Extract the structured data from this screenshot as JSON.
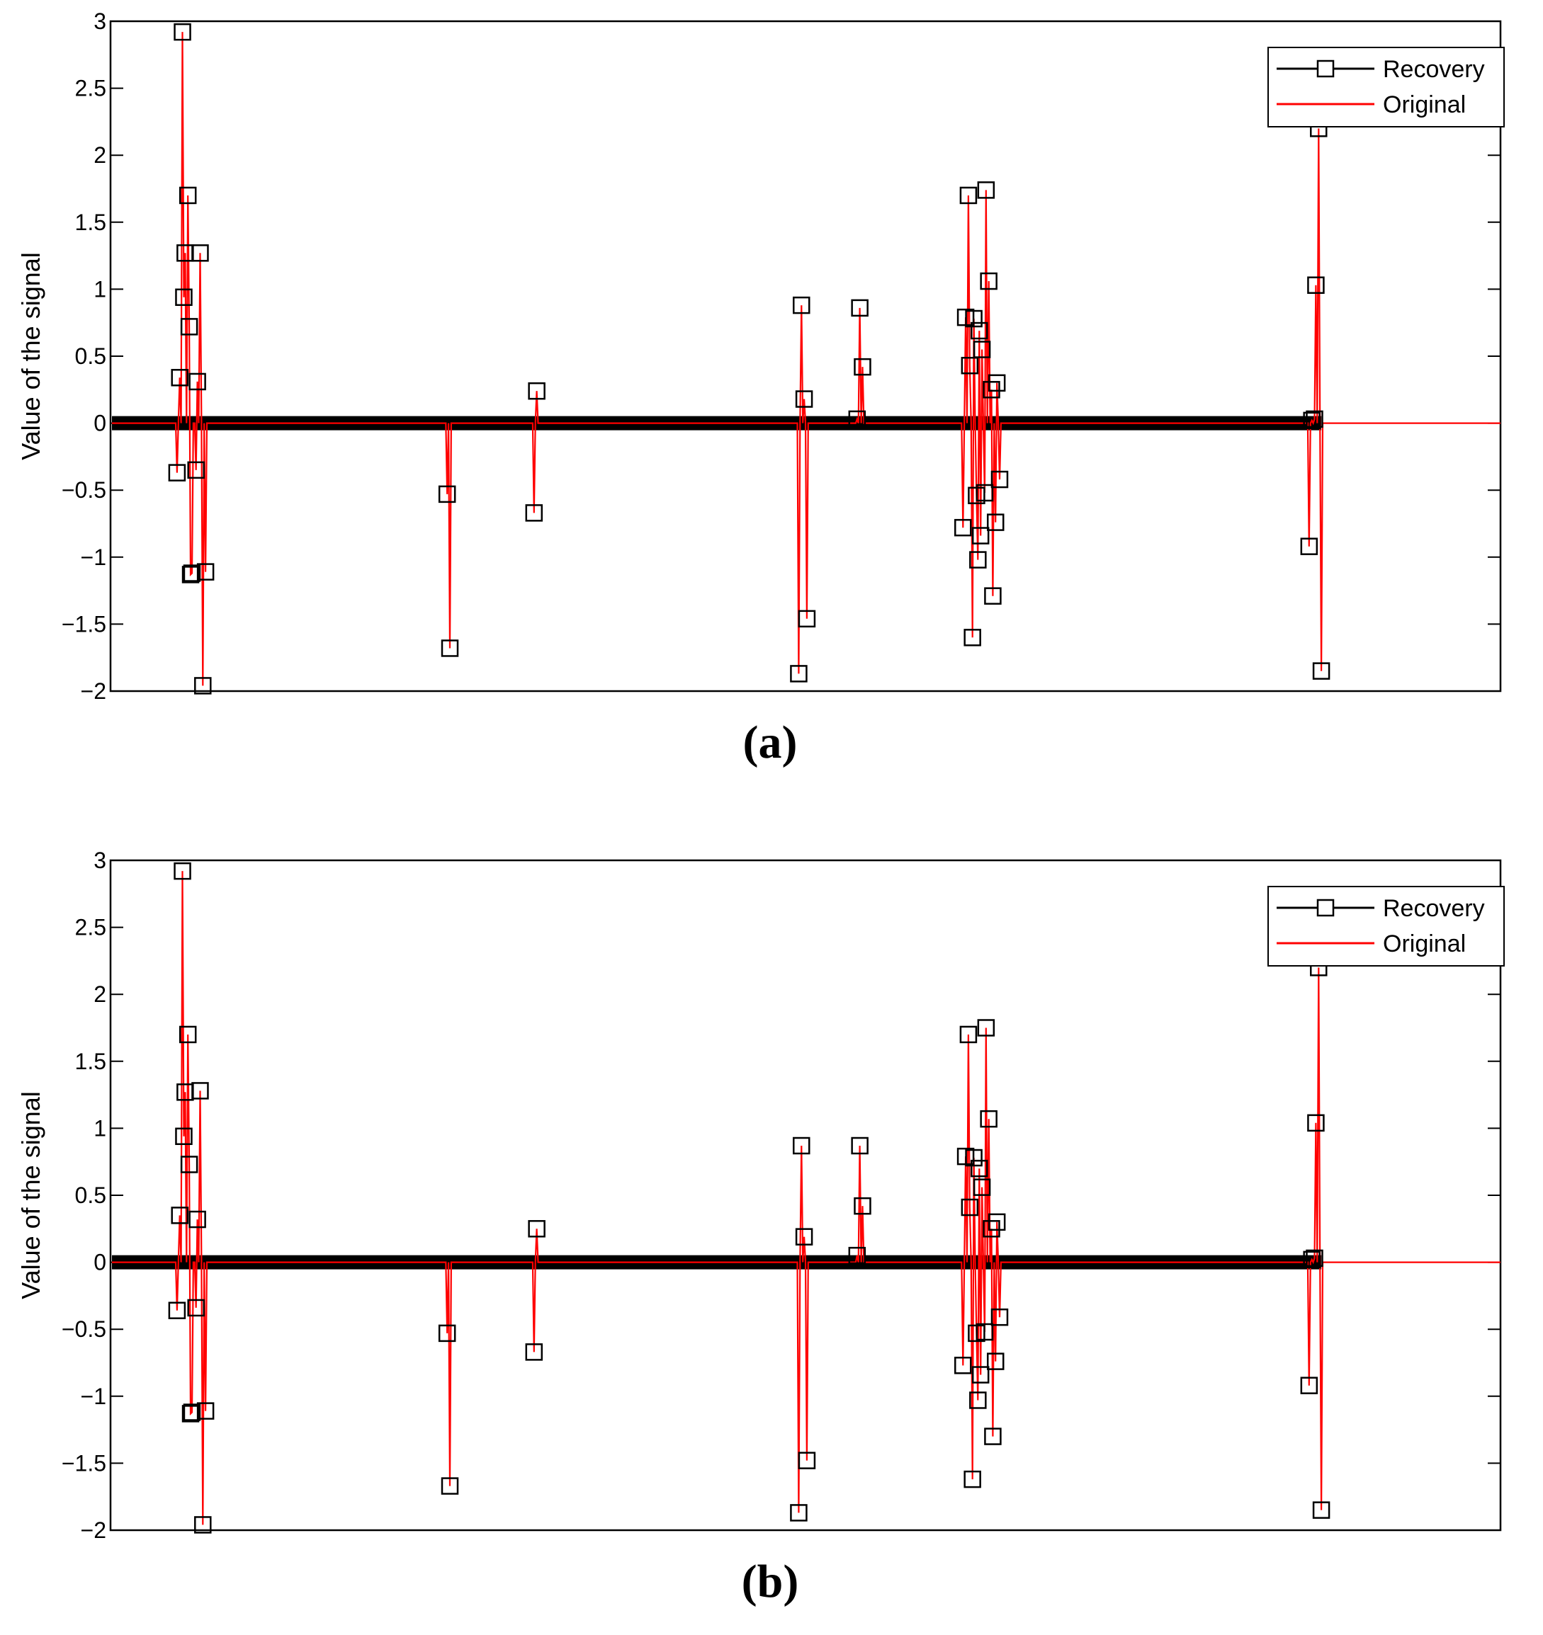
{
  "chart_data": [
    {
      "type": "line",
      "panel_label": "(a)",
      "ylabel": "Value of the signal",
      "xlim": [
        0,
        1024
      ],
      "ylim": [
        -2,
        3
      ],
      "yticks": [
        -2,
        -1.5,
        -1,
        -0.5,
        0,
        0.5,
        1,
        1.5,
        2,
        2.5,
        3
      ],
      "ytick_labels": [
        "−2",
        "−1.5",
        "−1",
        "−0.5",
        "0",
        "0.5",
        "1",
        "1.5",
        "2",
        "2.5",
        "3"
      ],
      "legend": {
        "position": "top-right",
        "entries": [
          "Recovery",
          "Original"
        ]
      },
      "series": [
        {
          "name": "Recovery",
          "color": "#000000",
          "marker": "square"
        },
        {
          "name": "Original",
          "color": "#ff0000",
          "marker": "none"
        }
      ],
      "nonzero_points": [
        [
          49,
          -0.37
        ],
        [
          51,
          0.34
        ],
        [
          53,
          2.92
        ],
        [
          54,
          0.94
        ],
        [
          55,
          1.27
        ],
        [
          57,
          1.7
        ],
        [
          58,
          0.72
        ],
        [
          59,
          -1.13
        ],
        [
          60,
          -1.12
        ],
        [
          63,
          -0.35
        ],
        [
          64,
          0.31
        ],
        [
          66,
          1.27
        ],
        [
          68,
          -1.96
        ],
        [
          70,
          -1.11
        ],
        [
          248,
          -0.53
        ],
        [
          250,
          -1.68
        ],
        [
          312,
          -0.67
        ],
        [
          314,
          0.24
        ],
        [
          507,
          -1.87
        ],
        [
          509,
          0.88
        ],
        [
          511,
          0.18
        ],
        [
          513,
          -1.46
        ],
        [
          550,
          0.03
        ],
        [
          552,
          0.86
        ],
        [
          554,
          0.42
        ],
        [
          628,
          -0.78
        ],
        [
          630,
          0.79
        ],
        [
          632,
          1.7
        ],
        [
          633,
          0.43
        ],
        [
          635,
          -1.6
        ],
        [
          636,
          0.78
        ],
        [
          638,
          -0.54
        ],
        [
          639,
          -1.02
        ],
        [
          640,
          0.69
        ],
        [
          641,
          -0.84
        ],
        [
          642,
          0.55
        ],
        [
          644,
          -0.52
        ],
        [
          645,
          1.74
        ],
        [
          647,
          1.06
        ],
        [
          649,
          0.25
        ],
        [
          650,
          -1.29
        ],
        [
          652,
          -0.74
        ],
        [
          653,
          0.3
        ],
        [
          655,
          -0.42
        ],
        [
          883,
          -0.92
        ],
        [
          885,
          0.02
        ],
        [
          887,
          0.03
        ],
        [
          888,
          1.03
        ],
        [
          890,
          2.2
        ],
        [
          892,
          -1.85
        ]
      ]
    },
    {
      "type": "line",
      "panel_label": "(b)",
      "ylabel": "Value of the signal",
      "xlim": [
        0,
        1024
      ],
      "ylim": [
        -2,
        3
      ],
      "yticks": [
        -2,
        -1.5,
        -1,
        -0.5,
        0,
        0.5,
        1,
        1.5,
        2,
        2.5,
        3
      ],
      "ytick_labels": [
        "−2",
        "−1.5",
        "−1",
        "−0.5",
        "0",
        "0.5",
        "1",
        "1.5",
        "2",
        "2.5",
        "3"
      ],
      "legend": {
        "position": "top-right",
        "entries": [
          "Recovery",
          "Original"
        ]
      },
      "series": [
        {
          "name": "Recovery",
          "color": "#000000",
          "marker": "square"
        },
        {
          "name": "Original",
          "color": "#ff0000",
          "marker": "none"
        }
      ],
      "nonzero_points": [
        [
          49,
          -0.36
        ],
        [
          51,
          0.35
        ],
        [
          53,
          2.92
        ],
        [
          54,
          0.94
        ],
        [
          55,
          1.27
        ],
        [
          57,
          1.7
        ],
        [
          58,
          0.73
        ],
        [
          59,
          -1.13
        ],
        [
          60,
          -1.12
        ],
        [
          63,
          -0.34
        ],
        [
          64,
          0.32
        ],
        [
          66,
          1.28
        ],
        [
          68,
          -1.96
        ],
        [
          70,
          -1.11
        ],
        [
          248,
          -0.53
        ],
        [
          250,
          -1.67
        ],
        [
          312,
          -0.67
        ],
        [
          314,
          0.25
        ],
        [
          507,
          -1.87
        ],
        [
          509,
          0.87
        ],
        [
          511,
          0.19
        ],
        [
          513,
          -1.48
        ],
        [
          550,
          0.05
        ],
        [
          552,
          0.87
        ],
        [
          554,
          0.42
        ],
        [
          628,
          -0.77
        ],
        [
          630,
          0.79
        ],
        [
          632,
          1.7
        ],
        [
          633,
          0.41
        ],
        [
          635,
          -1.62
        ],
        [
          636,
          0.78
        ],
        [
          638,
          -0.53
        ],
        [
          639,
          -1.03
        ],
        [
          640,
          0.7
        ],
        [
          641,
          -0.84
        ],
        [
          642,
          0.56
        ],
        [
          644,
          -0.52
        ],
        [
          645,
          1.75
        ],
        [
          647,
          1.07
        ],
        [
          649,
          0.25
        ],
        [
          650,
          -1.3
        ],
        [
          652,
          -0.74
        ],
        [
          653,
          0.3
        ],
        [
          655,
          -0.41
        ],
        [
          883,
          -0.92
        ],
        [
          885,
          0.02
        ],
        [
          887,
          0.03
        ],
        [
          888,
          1.04
        ],
        [
          890,
          2.2
        ],
        [
          892,
          -1.85
        ]
      ]
    }
  ]
}
